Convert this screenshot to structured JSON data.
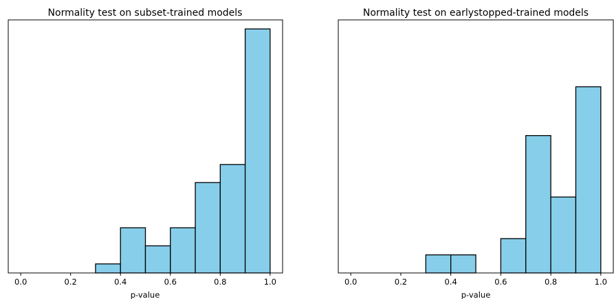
{
  "chart_data": [
    {
      "type": "bar",
      "title": "Normality test on subset-trained models",
      "xlabel": "p-value",
      "ylabel": "",
      "xlim": [
        -0.05,
        1.05
      ],
      "ylim": [
        0,
        14
      ],
      "bin_edges": [
        0.0,
        0.1,
        0.2,
        0.3,
        0.4,
        0.5,
        0.6,
        0.7,
        0.8,
        0.9,
        1.0
      ],
      "values": [
        0,
        0,
        0,
        0.5,
        2.5,
        1.5,
        2.5,
        5,
        6,
        13.5
      ],
      "xticks": [
        "0.0",
        "0.2",
        "0.4",
        "0.6",
        "0.8",
        "1.0"
      ],
      "yticks_shown": false,
      "grid": false,
      "bar_color": "#87ceeb",
      "edge_color": "#000000"
    },
    {
      "type": "bar",
      "title": "Normality test on earlystopped-trained models",
      "xlabel": "p-value",
      "ylabel": "",
      "xlim": [
        -0.05,
        1.05
      ],
      "ylim": [
        0,
        14
      ],
      "bin_edges": [
        0.0,
        0.1,
        0.2,
        0.3,
        0.4,
        0.5,
        0.6,
        0.7,
        0.8,
        0.9,
        1.0
      ],
      "values": [
        0,
        0,
        0,
        1,
        1,
        0,
        1.9,
        7.6,
        4.2,
        10.3
      ],
      "xticks": [
        "0.0",
        "0.2",
        "0.4",
        "0.6",
        "0.8",
        "1.0"
      ],
      "yticks_shown": false,
      "grid": false,
      "bar_color": "#87ceeb",
      "edge_color": "#000000"
    }
  ]
}
